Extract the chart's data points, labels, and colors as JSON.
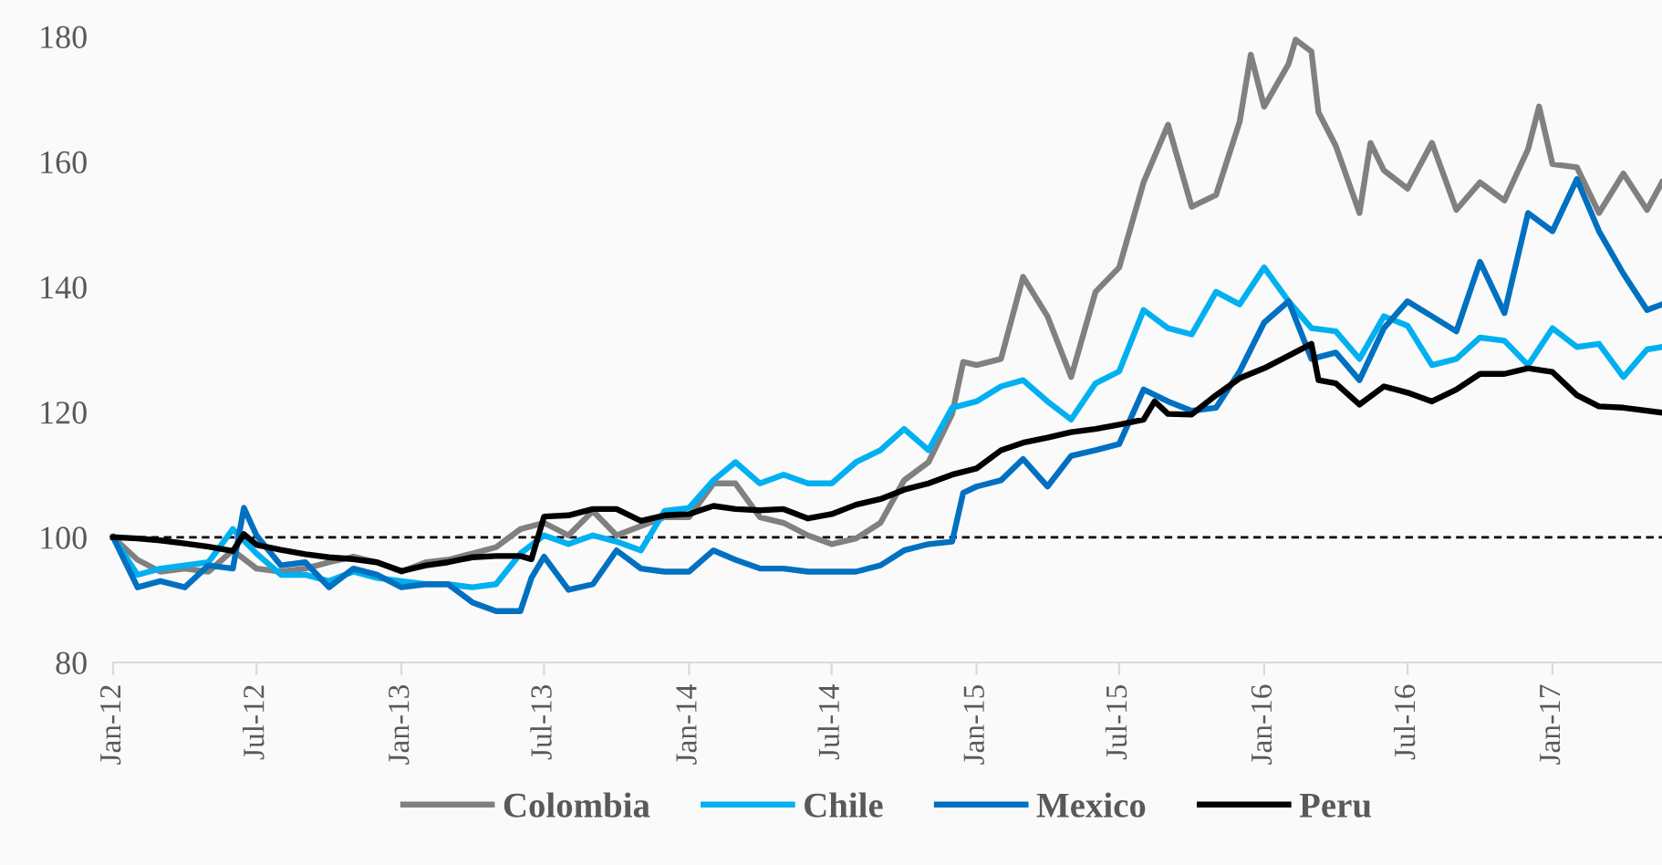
{
  "chart_data": {
    "type": "line",
    "xlim": [
      "2012-01-01",
      "2017-05-20"
    ],
    "ylim": [
      80,
      180
    ],
    "yticks": [
      80,
      100,
      120,
      140,
      160,
      180
    ],
    "xticks": [
      {
        "value": "2012-01-01",
        "label": "Jan-12"
      },
      {
        "value": "2012-07-01",
        "label": "Jul-12"
      },
      {
        "value": "2013-01-01",
        "label": "Jan-13"
      },
      {
        "value": "2013-07-01",
        "label": "Jul-13"
      },
      {
        "value": "2014-01-01",
        "label": "Jan-14"
      },
      {
        "value": "2014-07-01",
        "label": "Jul-14"
      },
      {
        "value": "2015-01-01",
        "label": "Jan-15"
      },
      {
        "value": "2015-07-01",
        "label": "Jul-15"
      },
      {
        "value": "2016-01-01",
        "label": "Jan-16"
      },
      {
        "value": "2016-07-01",
        "label": "Jul-16"
      },
      {
        "value": "2017-01-01",
        "label": "Jan-17"
      }
    ],
    "grid": false,
    "legend": "bottom",
    "marker": "none",
    "line_style": "solid",
    "ref_lines": [
      {
        "axis": "y",
        "value": 100,
        "color": "#000000",
        "line_style": "dashed"
      }
    ],
    "series": [
      {
        "name": "Colombia",
        "color": "#808080",
        "x": [
          "2012-01-01",
          "2012-02-01",
          "2012-03-01",
          "2012-04-01",
          "2012-05-01",
          "2012-06-01",
          "2012-07-01",
          "2012-08-01",
          "2012-09-01",
          "2012-10-01",
          "2012-11-01",
          "2012-12-01",
          "2013-01-01",
          "2013-02-01",
          "2013-03-01",
          "2013-04-01",
          "2013-05-01",
          "2013-06-01",
          "2013-07-01",
          "2013-08-01",
          "2013-09-01",
          "2013-10-01",
          "2013-11-01",
          "2013-12-01",
          "2014-01-01",
          "2014-02-01",
          "2014-03-01",
          "2014-04-01",
          "2014-05-01",
          "2014-06-01",
          "2014-07-01",
          "2014-08-01",
          "2014-09-01",
          "2014-10-01",
          "2014-11-01",
          "2014-12-01",
          "2014-12-15",
          "2015-01-01",
          "2015-02-01",
          "2015-03-01",
          "2015-04-01",
          "2015-05-01",
          "2015-06-01",
          "2015-07-01",
          "2015-08-01",
          "2015-09-01",
          "2015-10-01",
          "2015-11-01",
          "2015-12-01",
          "2015-12-15",
          "2016-01-01",
          "2016-02-01",
          "2016-02-10",
          "2016-03-01",
          "2016-03-10",
          "2016-04-01",
          "2016-05-01",
          "2016-05-15",
          "2016-06-01",
          "2016-07-01",
          "2016-08-01",
          "2016-09-01",
          "2016-10-01",
          "2016-11-01",
          "2016-12-01",
          "2016-12-15",
          "2017-01-01",
          "2017-02-01",
          "2017-03-01",
          "2017-04-01",
          "2017-05-01",
          "2017-05-20"
        ],
        "values": [
          100,
          96.4,
          94.5,
          95,
          94.5,
          97.9,
          95,
          94.5,
          95,
          96,
          96.9,
          96,
          94.5,
          96,
          96.4,
          97.4,
          98.4,
          101.3,
          102.3,
          100.3,
          104.2,
          100.3,
          101.8,
          103.2,
          103.2,
          108.6,
          108.6,
          103.2,
          102.3,
          100.3,
          98.9,
          99.8,
          102.3,
          109.1,
          112,
          119.7,
          128,
          127.5,
          128.5,
          141.6,
          135.3,
          125.6,
          139.2,
          143.1,
          156.7,
          165.9,
          152.8,
          154.7,
          166.4,
          177.1,
          168.8,
          175.6,
          179.5,
          177.6,
          167.9,
          162.5,
          151.8,
          163,
          158.6,
          155.7,
          163,
          152.3,
          156.7,
          153.8,
          162,
          168.8,
          159.6,
          159.1,
          151.8,
          158.1,
          152.3,
          156.7
        ]
      },
      {
        "name": "Chile",
        "color": "#00b0f0",
        "x": [
          "2012-01-01",
          "2012-02-01",
          "2012-03-01",
          "2012-04-01",
          "2012-05-01",
          "2012-06-01",
          "2012-07-01",
          "2012-08-01",
          "2012-09-01",
          "2012-10-01",
          "2012-11-01",
          "2012-12-01",
          "2013-01-01",
          "2013-02-01",
          "2013-03-01",
          "2013-04-01",
          "2013-05-01",
          "2013-06-01",
          "2013-07-01",
          "2013-08-01",
          "2013-09-01",
          "2013-10-01",
          "2013-11-01",
          "2013-12-01",
          "2014-01-01",
          "2014-02-01",
          "2014-03-01",
          "2014-04-01",
          "2014-05-01",
          "2014-06-01",
          "2014-07-01",
          "2014-08-01",
          "2014-09-01",
          "2014-10-01",
          "2014-11-01",
          "2014-12-01",
          "2015-01-01",
          "2015-02-01",
          "2015-03-01",
          "2015-04-01",
          "2015-05-01",
          "2015-06-01",
          "2015-07-01",
          "2015-08-01",
          "2015-09-01",
          "2015-10-01",
          "2015-11-01",
          "2015-12-01",
          "2016-01-01",
          "2016-02-01",
          "2016-03-01",
          "2016-04-01",
          "2016-05-01",
          "2016-06-01",
          "2016-07-01",
          "2016-08-01",
          "2016-09-01",
          "2016-10-01",
          "2016-11-01",
          "2016-12-01",
          "2017-01-01",
          "2017-02-01",
          "2017-03-01",
          "2017-04-01",
          "2017-05-01",
          "2017-05-20"
        ],
        "values": [
          100,
          94,
          95,
          95.5,
          96,
          101.3,
          97.4,
          94,
          94,
          93,
          94.5,
          93.5,
          93,
          92.5,
          92.5,
          92,
          92.5,
          97.4,
          100.3,
          98.9,
          100.3,
          99.3,
          97.9,
          104.2,
          104.7,
          109.1,
          112,
          108.6,
          110,
          108.6,
          108.6,
          112,
          113.9,
          117.3,
          113.9,
          120.7,
          121.7,
          124.1,
          125.1,
          121.7,
          118.8,
          124.6,
          126.5,
          136.3,
          133.4,
          132.4,
          139.2,
          137.2,
          143.1,
          137.7,
          133.4,
          132.9,
          128.5,
          135.3,
          133.8,
          127.5,
          128.5,
          131.9,
          131.4,
          127.5,
          133.4,
          130.4,
          130.9,
          125.6,
          130,
          130.4
        ]
      },
      {
        "name": "Mexico",
        "color": "#0070c0",
        "x": [
          "2012-01-01",
          "2012-02-01",
          "2012-03-01",
          "2012-04-01",
          "2012-05-01",
          "2012-06-01",
          "2012-06-15",
          "2012-07-01",
          "2012-08-01",
          "2012-09-01",
          "2012-10-01",
          "2012-11-01",
          "2012-12-01",
          "2013-01-01",
          "2013-02-01",
          "2013-03-01",
          "2013-04-01",
          "2013-05-01",
          "2013-06-01",
          "2013-06-15",
          "2013-07-01",
          "2013-08-01",
          "2013-09-01",
          "2013-10-01",
          "2013-11-01",
          "2013-12-01",
          "2014-01-01",
          "2014-02-01",
          "2014-03-01",
          "2014-04-01",
          "2014-05-01",
          "2014-06-01",
          "2014-07-01",
          "2014-08-01",
          "2014-09-01",
          "2014-10-01",
          "2014-11-01",
          "2014-12-01",
          "2014-12-15",
          "2015-01-01",
          "2015-02-01",
          "2015-03-01",
          "2015-04-01",
          "2015-05-01",
          "2015-06-01",
          "2015-07-01",
          "2015-08-01",
          "2015-09-01",
          "2015-10-01",
          "2015-11-01",
          "2015-12-01",
          "2016-01-01",
          "2016-02-01",
          "2016-03-01",
          "2016-04-01",
          "2016-05-01",
          "2016-06-01",
          "2016-07-01",
          "2016-08-01",
          "2016-09-01",
          "2016-10-01",
          "2016-11-01",
          "2016-12-01",
          "2017-01-01",
          "2017-02-01",
          "2017-03-01",
          "2017-04-01",
          "2017-05-01",
          "2017-05-20"
        ],
        "values": [
          100,
          92,
          93,
          92,
          95.5,
          95,
          104.7,
          100.3,
          95.5,
          96,
          92,
          95,
          94,
          92,
          92.5,
          92.5,
          89.6,
          88.2,
          88.2,
          93.5,
          96.9,
          91.6,
          92.5,
          97.9,
          95,
          94.5,
          94.5,
          97.9,
          96.4,
          95,
          95,
          94.5,
          94.5,
          94.5,
          95.5,
          97.9,
          98.9,
          99.3,
          107.1,
          108.1,
          109.1,
          112.5,
          108.1,
          113,
          113.9,
          114.9,
          123.6,
          121.7,
          120.2,
          120.7,
          126.5,
          134.3,
          137.7,
          128.5,
          129.5,
          125.1,
          133.4,
          137.7,
          135.3,
          132.9,
          144,
          135.8,
          151.8,
          148.9,
          157.2,
          148.9,
          142.1,
          136.3,
          137.2
        ]
      },
      {
        "name": "Peru",
        "color": "#000000",
        "x": [
          "2012-01-01",
          "2012-02-01",
          "2012-03-01",
          "2012-04-01",
          "2012-05-01",
          "2012-06-01",
          "2012-06-15",
          "2012-07-01",
          "2012-08-01",
          "2012-09-01",
          "2012-10-01",
          "2012-11-01",
          "2012-12-01",
          "2013-01-01",
          "2013-02-01",
          "2013-03-01",
          "2013-04-01",
          "2013-05-01",
          "2013-06-01",
          "2013-06-15",
          "2013-07-01",
          "2013-08-01",
          "2013-09-01",
          "2013-10-01",
          "2013-11-01",
          "2013-12-01",
          "2014-01-01",
          "2014-02-01",
          "2014-03-01",
          "2014-04-01",
          "2014-05-01",
          "2014-06-01",
          "2014-07-01",
          "2014-08-01",
          "2014-09-01",
          "2014-10-01",
          "2014-11-01",
          "2014-12-01",
          "2015-01-01",
          "2015-02-01",
          "2015-03-01",
          "2015-04-01",
          "2015-05-01",
          "2015-06-01",
          "2015-07-01",
          "2015-08-01",
          "2015-08-15",
          "2015-09-01",
          "2015-10-01",
          "2015-11-01",
          "2015-12-01",
          "2016-01-01",
          "2016-02-01",
          "2016-03-01",
          "2016-03-10",
          "2016-04-01",
          "2016-05-01",
          "2016-06-01",
          "2016-07-01",
          "2016-08-01",
          "2016-09-01",
          "2016-10-01",
          "2016-11-01",
          "2016-12-01",
          "2017-01-01",
          "2017-02-01",
          "2017-03-01",
          "2017-04-01",
          "2017-05-20"
        ],
        "values": [
          100,
          99.8,
          99.5,
          99,
          98.5,
          97.8,
          100.5,
          98.8,
          98,
          97.3,
          96.8,
          96.5,
          96,
          94.6,
          95.5,
          96,
          96.8,
          97,
          97,
          96.5,
          103.3,
          103.5,
          104.5,
          104.5,
          102.6,
          103.5,
          103.7,
          105,
          104.5,
          104.3,
          104.5,
          103,
          103.7,
          105.2,
          106.1,
          107.6,
          108.6,
          110,
          111,
          113.9,
          115.1,
          115.9,
          116.8,
          117.3,
          118,
          118.8,
          121.7,
          119.7,
          119.6,
          122.7,
          125.4,
          127,
          129,
          130.9,
          125.1,
          124.6,
          121.2,
          124.1,
          123.1,
          121.7,
          123.6,
          126.1,
          126.1,
          127,
          126.4,
          122.7,
          120.9,
          120.7,
          119.9
        ]
      }
    ]
  }
}
